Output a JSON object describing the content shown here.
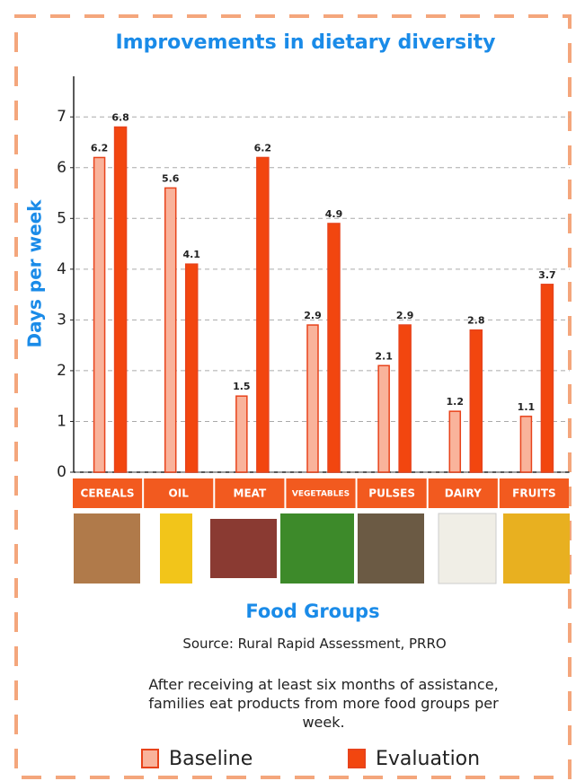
{
  "chart_data": {
    "type": "bar",
    "title": "Improvements in dietary diversity",
    "y_label": "Days per week",
    "x_label": "Food Groups",
    "categories": [
      "CEREALS",
      "OIL",
      "MEAT",
      "VEGETABLES",
      "PULSES",
      "DAIRY",
      "FRUITS"
    ],
    "series": [
      {
        "name": "Baseline",
        "color": "#f9b39b",
        "stroke": "#e8431b",
        "values": [
          6.2,
          5.6,
          1.5,
          2.9,
          2.1,
          1.2,
          1.1
        ]
      },
      {
        "name": "Evaluation",
        "color": "#f2460f",
        "stroke": "#e8431b",
        "values": [
          6.8,
          4.1,
          6.2,
          4.9,
          2.9,
          2.8,
          3.7
        ]
      }
    ],
    "ylim": [
      0,
      7.8
    ],
    "yticks": [
      0,
      1,
      2,
      3,
      4,
      5,
      6,
      7
    ],
    "grid": true,
    "source": "Source: Rural Rapid Assessment, PRRO",
    "note": "After receiving at least six months of assistance, families eat products from more food groups per week."
  }
}
